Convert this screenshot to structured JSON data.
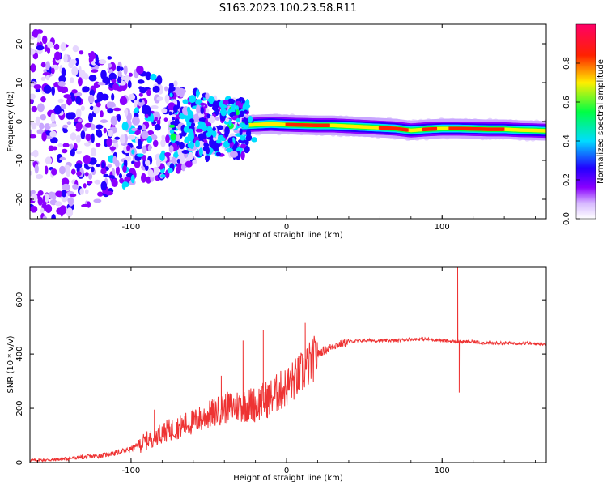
{
  "title": "S163.2023.100.23.58.R11",
  "colors": {
    "snr_line": "#ee3333",
    "colormap": [
      "#ffffff",
      "#8a00ff",
      "#2200ff",
      "#00ddff",
      "#00ff44",
      "#ffee00",
      "#ff2200",
      "#ff0066"
    ]
  },
  "chart_data": [
    {
      "type": "heatmap",
      "title": "S163.2023.100.23.58.R11",
      "xlabel": "Height of straight line (km)",
      "ylabel": "Frequency (Hz)",
      "xlim": [
        -165,
        167
      ],
      "ylim": [
        -25,
        25
      ],
      "x_ticks": [
        -100,
        0,
        100
      ],
      "x_tick_labels": [
        "-100",
        "0",
        "100"
      ],
      "y_ticks": [
        20,
        10,
        0,
        -10,
        -20
      ],
      "y_tick_labels": [
        "20",
        "10",
        "0",
        "-10",
        "-20"
      ],
      "colorbar": {
        "label": "Normalized spectral amplitude",
        "range": [
          0,
          1
        ],
        "ticks": [
          0.0,
          0.2,
          0.4,
          0.6,
          0.8
        ],
        "tick_labels": [
          "0.0",
          "0.2",
          "0.4",
          "0.6",
          "0.8"
        ]
      },
      "grid": false,
      "ridge": [
        {
          "x": -40,
          "f": -1.5
        },
        {
          "x": -30,
          "f": -1.0
        },
        {
          "x": -20,
          "f": -0.8
        },
        {
          "x": -10,
          "f": -0.6
        },
        {
          "x": 0,
          "f": -0.8
        },
        {
          "x": 10,
          "f": -0.9
        },
        {
          "x": 20,
          "f": -1.0
        },
        {
          "x": 30,
          "f": -1.0
        },
        {
          "x": 40,
          "f": -1.2
        },
        {
          "x": 50,
          "f": -1.4
        },
        {
          "x": 60,
          "f": -1.6
        },
        {
          "x": 70,
          "f": -1.8
        },
        {
          "x": 80,
          "f": -2.3
        },
        {
          "x": 90,
          "f": -2.0
        },
        {
          "x": 100,
          "f": -1.8
        },
        {
          "x": 110,
          "f": -1.8
        },
        {
          "x": 120,
          "f": -1.9
        },
        {
          "x": 130,
          "f": -2.0
        },
        {
          "x": 140,
          "f": -2.0
        },
        {
          "x": 150,
          "f": -2.2
        },
        {
          "x": 160,
          "f": -2.3
        },
        {
          "x": 167,
          "f": -2.4
        }
      ]
    },
    {
      "type": "line",
      "xlabel": "Height of straight line (km)",
      "ylabel": "SNR (10 * v/v)",
      "xlim": [
        -165,
        167
      ],
      "ylim": [
        0,
        720
      ],
      "x_ticks": [
        -100,
        0,
        100
      ],
      "x_tick_labels": [
        "-100",
        "0",
        "100"
      ],
      "y_ticks": [
        0,
        200,
        400,
        600
      ],
      "y_tick_labels": [
        "0",
        "200",
        "400",
        "600"
      ],
      "grid": false,
      "series": [
        {
          "x": [
            -165,
            -150,
            -140,
            -130,
            -120,
            -110,
            -100,
            -90,
            -80,
            -70,
            -60,
            -50,
            -40,
            -30,
            -20,
            -10,
            0,
            10,
            20,
            30,
            40,
            50,
            60,
            70,
            80,
            90,
            100,
            110,
            120,
            130,
            140,
            150,
            160,
            167
          ],
          "values": [
            8,
            10,
            15,
            20,
            25,
            35,
            50,
            80,
            110,
            130,
            150,
            175,
            200,
            210,
            215,
            240,
            280,
            330,
            400,
            430,
            445,
            450,
            450,
            450,
            455,
            455,
            450,
            445,
            445,
            440,
            440,
            440,
            438,
            438
          ],
          "spikes": [
            {
              "x": -85,
              "y": 195
            },
            {
              "x": -42,
              "y": 320
            },
            {
              "x": -28,
              "y": 450
            },
            {
              "x": -15,
              "y": 490
            },
            {
              "x": 12,
              "y": 515
            },
            {
              "x": 110,
              "y": 720
            },
            {
              "x": 111,
              "y": 258
            }
          ]
        }
      ]
    }
  ]
}
